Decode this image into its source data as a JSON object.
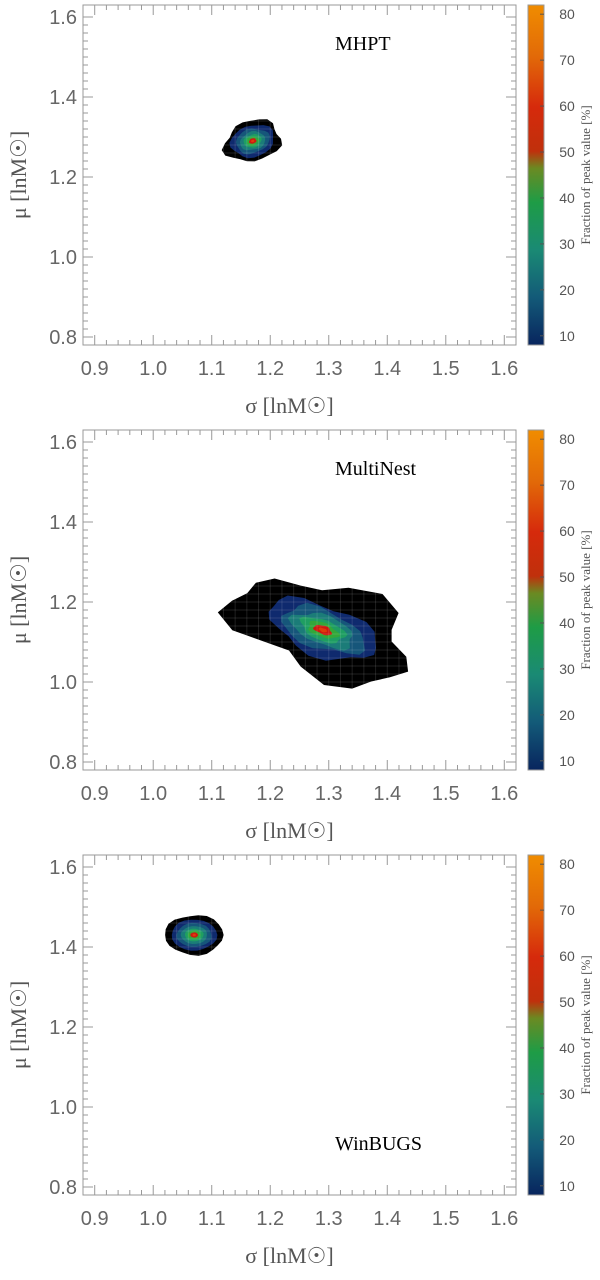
{
  "chart_data": [
    {
      "type": "contour",
      "title": "MHPT",
      "xlabel": "σ   [lnM☉]",
      "ylabel": "μ   [lnM☉]",
      "xlim": [
        0.88,
        1.62
      ],
      "ylim": [
        0.78,
        1.63
      ],
      "xticks": [
        "0.9",
        "1.0",
        "1.1",
        "1.2",
        "1.3",
        "1.4",
        "1.5",
        "1.6"
      ],
      "yticks": [
        "0.8",
        "1.0",
        "1.2",
        "1.4",
        "1.6"
      ],
      "title_position": "top-right",
      "peak": {
        "sigma": 1.17,
        "mu": 1.29
      },
      "colorbar": {
        "label": "Fraction of peak value [%]",
        "ticks": [
          "10",
          "20",
          "30",
          "40",
          "50",
          "60",
          "70",
          "80"
        ],
        "range": [
          8,
          82
        ]
      }
    },
    {
      "type": "contour",
      "title": "MultiNest",
      "xlabel": "σ   [lnM☉]",
      "ylabel": "μ   [lnM☉]",
      "xlim": [
        0.88,
        1.62
      ],
      "ylim": [
        0.78,
        1.63
      ],
      "xticks": [
        "0.9",
        "1.0",
        "1.1",
        "1.2",
        "1.3",
        "1.4",
        "1.5",
        "1.6"
      ],
      "yticks": [
        "0.8",
        "1.0",
        "1.2",
        "1.4",
        "1.6"
      ],
      "title_position": "top-right",
      "peak": {
        "sigma": 1.29,
        "mu": 1.13
      },
      "colorbar": {
        "label": "Fraction of peak value [%]",
        "ticks": [
          "10",
          "20",
          "30",
          "40",
          "50",
          "60",
          "70",
          "80"
        ],
        "range": [
          8,
          82
        ]
      }
    },
    {
      "type": "contour",
      "title": "WinBUGS",
      "xlabel": "σ   [lnM☉]",
      "ylabel": "μ   [lnM☉]",
      "xlim": [
        0.88,
        1.62
      ],
      "ylim": [
        0.78,
        1.63
      ],
      "xticks": [
        "0.9",
        "1.0",
        "1.1",
        "1.2",
        "1.3",
        "1.4",
        "1.5",
        "1.6"
      ],
      "yticks": [
        "0.8",
        "1.0",
        "1.2",
        "1.4",
        "1.6"
      ],
      "title_position": "bottom-right",
      "peak": {
        "sigma": 1.07,
        "mu": 1.43
      },
      "colorbar": {
        "label": "Fraction of peak value [%]",
        "ticks": [
          "10",
          "20",
          "30",
          "40",
          "50",
          "60",
          "70",
          "80"
        ],
        "range": [
          8,
          82
        ]
      }
    }
  ],
  "colors": {
    "background": "#ffffff",
    "frame": "#999999",
    "contour_levels": [
      "#000000",
      "#0f2a6e",
      "#16567a",
      "#1b7c78",
      "#1f9e62",
      "#33a83a",
      "#cc1a10",
      "#e03a0a"
    ]
  }
}
